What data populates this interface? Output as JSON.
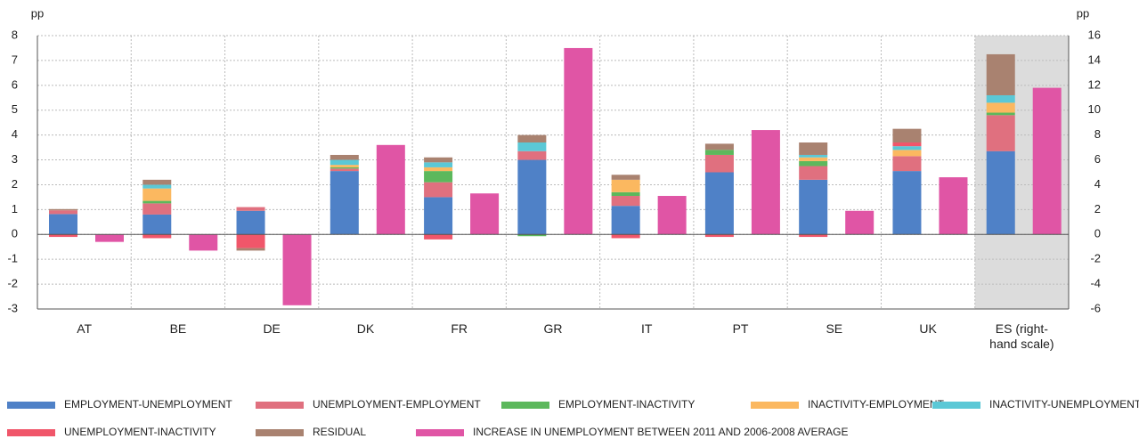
{
  "chart_data": {
    "type": "stacked_bar_pair",
    "ylabel": "pp",
    "y2label": "pp",
    "categories": [
      "AT",
      "BE",
      "DE",
      "DK",
      "FR",
      "GR",
      "IT",
      "PT",
      "SE",
      "UK",
      "ES (right-hand scale)"
    ],
    "y2_category_index": 10,
    "ylim": [
      -3,
      8
    ],
    "yticks": [
      -3,
      -2,
      -1,
      0,
      1,
      2,
      3,
      4,
      5,
      6,
      7,
      8
    ],
    "y2lim": [
      -6,
      16
    ],
    "y2ticks": [
      -6,
      -4,
      -2,
      0,
      2,
      4,
      6,
      8,
      10,
      12,
      14,
      16
    ],
    "grid": true,
    "series": [
      {
        "name": "EMPLOYMENT-UNEMPLOYMENT",
        "color": "#4f81c7",
        "values": [
          0.82,
          0.8,
          0.95,
          2.55,
          1.5,
          3.0,
          1.15,
          2.5,
          2.2,
          2.55,
          6.7
        ]
      },
      {
        "name": "UNEMPLOYMENT-EMPLOYMENT",
        "color": "#e0707f",
        "values": [
          0.15,
          0.45,
          0.15,
          0.1,
          0.6,
          0.35,
          0.4,
          0.7,
          0.55,
          0.6,
          2.9
        ]
      },
      {
        "name": "EMPLOYMENT-INACTIVITY",
        "color": "#5cb85c",
        "values": [
          0,
          0.1,
          0,
          0.05,
          0.45,
          -0.07,
          0.15,
          0.2,
          0.2,
          0,
          0.2
        ]
      },
      {
        "name": "INACTIVITY-EMPLOYMENT",
        "color": "#fbb860",
        "values": [
          0,
          0.5,
          0,
          0.1,
          0.15,
          0,
          0.5,
          0,
          0.15,
          0.25,
          0.8
        ]
      },
      {
        "name": "INACTIVITY-UNEMPLOYMENT",
        "color": "#5bc8d6",
        "values": [
          0,
          0.15,
          0,
          0.2,
          0.2,
          0.35,
          0,
          0,
          0.1,
          0.15,
          0.6
        ]
      },
      {
        "name": "UNEMPLOYMENT-INACTIVITY",
        "color": "#f0566a",
        "values": [
          -0.1,
          -0.15,
          -0.55,
          0,
          -0.2,
          0,
          -0.15,
          -0.1,
          -0.1,
          0.15,
          0
        ]
      },
      {
        "name": "RESIDUAL",
        "color": "#a98270",
        "values": [
          0.05,
          0.2,
          -0.1,
          0.2,
          0.2,
          0.3,
          0.2,
          0.25,
          0.5,
          0.55,
          3.3
        ]
      },
      {
        "name": "INCREASE IN UNEMPLOYMENT BETWEEN 2011 AND 2006-2008 AVERAGE",
        "color": "#e055a5",
        "values": [
          -0.3,
          -0.65,
          -2.85,
          3.6,
          1.65,
          7.5,
          1.55,
          4.2,
          0.95,
          2.3,
          11.8
        ]
      }
    ]
  }
}
